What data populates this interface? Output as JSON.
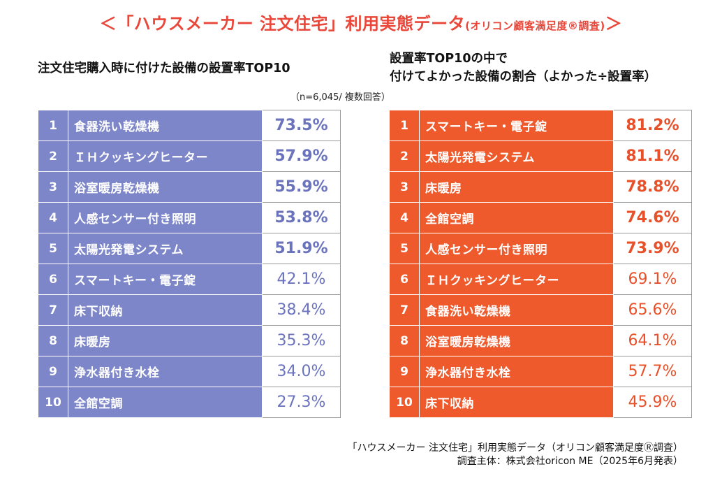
{
  "title": {
    "main": "＜「ハウスメーカー 注文住宅」利用実態データ",
    "sub": "(オリコン顧客満足度®調査)",
    "end": "＞"
  },
  "left": {
    "heading": "注文住宅購入時に付けた設備の設置率TOP10",
    "note": "（n=6,045/ 複数回答）",
    "rows": [
      {
        "rank": "1",
        "item": "食器洗い乾燥機",
        "value": "73.5%"
      },
      {
        "rank": "2",
        "item": "ＩＨクッキングヒーター",
        "value": "57.9%"
      },
      {
        "rank": "3",
        "item": "浴室暖房乾燥機",
        "value": "55.9%"
      },
      {
        "rank": "4",
        "item": "人感センサー付き照明",
        "value": "53.8%"
      },
      {
        "rank": "5",
        "item": "太陽光発電システム",
        "value": "51.9%"
      },
      {
        "rank": "6",
        "item": "スマートキー・電子錠",
        "value": "42.1%"
      },
      {
        "rank": "7",
        "item": "床下収納",
        "value": "38.4%"
      },
      {
        "rank": "8",
        "item": "床暖房",
        "value": "35.3%"
      },
      {
        "rank": "9",
        "item": "浄水器付き水栓",
        "value": "34.0%"
      },
      {
        "rank": "10",
        "item": "全館空調",
        "value": "27.3%"
      }
    ]
  },
  "right": {
    "heading_line1": "設置率TOP10の中で",
    "heading_line2": "付けてよかった設備の割合（よかった÷設置率）",
    "rows": [
      {
        "rank": "1",
        "item": "スマートキー・電子錠",
        "value": "81.2%"
      },
      {
        "rank": "2",
        "item": "太陽光発電システム",
        "value": "81.1%"
      },
      {
        "rank": "3",
        "item": "床暖房",
        "value": "78.8%"
      },
      {
        "rank": "4",
        "item": "全館空調",
        "value": "74.6%"
      },
      {
        "rank": "5",
        "item": "人感センサー付き照明",
        "value": "73.9%"
      },
      {
        "rank": "6",
        "item": "ＩＨクッキングヒーター",
        "value": "69.1%"
      },
      {
        "rank": "7",
        "item": "食器洗い乾燥機",
        "value": "65.6%"
      },
      {
        "rank": "8",
        "item": "浴室暖房乾燥機",
        "value": "64.1%"
      },
      {
        "rank": "9",
        "item": "浄水器付き水栓",
        "value": "57.7%"
      },
      {
        "rank": "10",
        "item": "床下収納",
        "value": "45.9%"
      }
    ]
  },
  "footer": {
    "line1": "「ハウスメーカー 注文住宅」利用実態データ（オリコン顧客満足度Ⓡ調査）",
    "line2": "調査主体：株式会社oricon ME（2025年6月発表）"
  },
  "colors": {
    "title": "#e8473a",
    "left_fill": "#7d86c8",
    "left_value": "#6b73bd",
    "right_fill": "#ef5a2c",
    "right_value": "#e8502a"
  }
}
